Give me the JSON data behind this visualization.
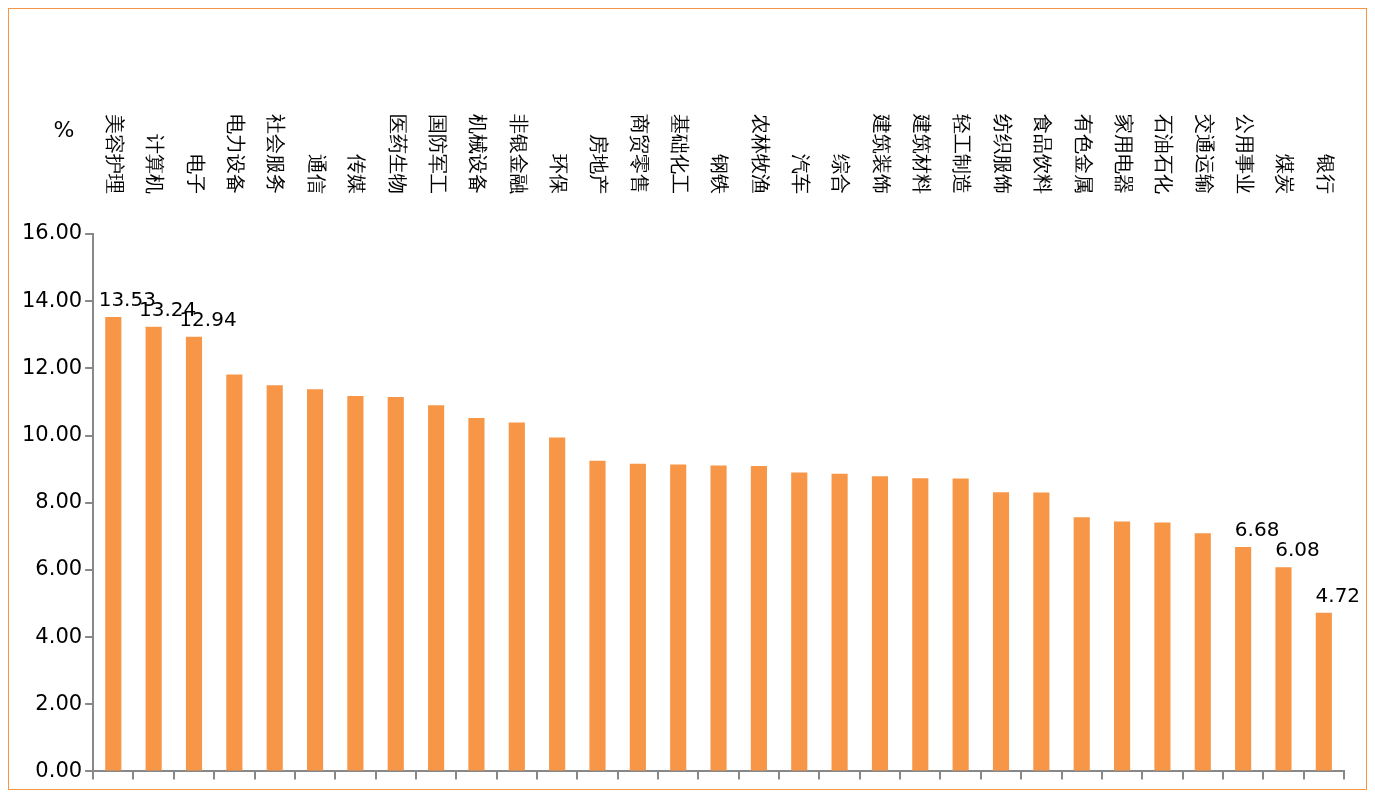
{
  "chart_data": {
    "type": "bar",
    "ylabel": "%",
    "categories": [
      "美容护理",
      "计算机",
      "电子",
      "电力设备",
      "社会服务",
      "通信",
      "传媒",
      "医药生物",
      "国防军工",
      "机械设备",
      "非银金融",
      "环保",
      "房地产",
      "商贸零售",
      "基础化工",
      "钢铁",
      "农林牧渔",
      "汽车",
      "综合",
      "建筑装饰",
      "建筑材料",
      "轻工制造",
      "纺织服饰",
      "食品饮料",
      "有色金属",
      "家用电器",
      "石油石化",
      "交通运输",
      "公用事业",
      "煤炭",
      "银行"
    ],
    "values": [
      13.53,
      13.24,
      12.94,
      11.82,
      11.5,
      11.38,
      11.18,
      11.15,
      10.9,
      10.52,
      10.39,
      9.94,
      9.25,
      9.16,
      9.14,
      9.11,
      9.09,
      8.9,
      8.86,
      8.79,
      8.73,
      8.72,
      8.31,
      8.3,
      7.57,
      7.44,
      7.41,
      7.09,
      6.68,
      6.08,
      4.72
    ],
    "value_labels": [
      "13.53",
      "13.24",
      "12.94",
      null,
      null,
      null,
      null,
      null,
      null,
      null,
      null,
      null,
      null,
      null,
      null,
      null,
      null,
      null,
      null,
      null,
      null,
      null,
      null,
      null,
      null,
      null,
      null,
      null,
      "6.68",
      "6.08",
      "4.72"
    ],
    "color": "#f79646",
    "ylim": [
      0,
      16
    ],
    "yticks": [
      {
        "value": 0,
        "label": "0.00"
      },
      {
        "value": 2,
        "label": "2.00"
      },
      {
        "value": 4,
        "label": "4.00"
      },
      {
        "value": 6,
        "label": "6.00"
      },
      {
        "value": 8,
        "label": "8.00"
      },
      {
        "value": 10,
        "label": "10.00"
      },
      {
        "value": 12,
        "label": "12.00"
      },
      {
        "value": 14,
        "label": "14.00"
      },
      {
        "value": 16,
        "label": "16.00"
      }
    ],
    "grid": false,
    "legend": false
  }
}
